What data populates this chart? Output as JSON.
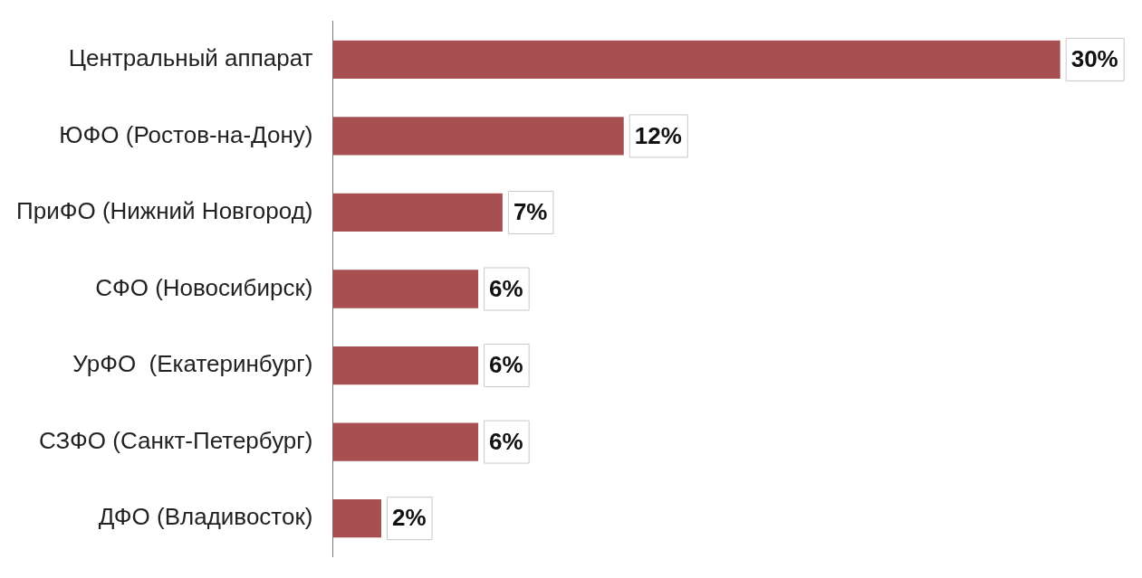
{
  "chart_data": {
    "type": "bar",
    "orientation": "horizontal",
    "categories": [
      "Центральный аппарат",
      "ЮФО (Ростов-на-Дону)",
      "ПриФО (Нижний Новгород)",
      "СФО (Новосибирск)",
      "УрФО  (Екатеринбург)",
      "СЗФО (Санкт-Петербург)",
      "ДФО (Владивосток)"
    ],
    "values": [
      30,
      12,
      7,
      6,
      6,
      6,
      2
    ],
    "value_labels": [
      "30%",
      "12%",
      "7%",
      "6%",
      "6%",
      "6%",
      "2%"
    ],
    "color": "#a84f51",
    "grid": false,
    "legend": false,
    "tick_labels": "y"
  }
}
